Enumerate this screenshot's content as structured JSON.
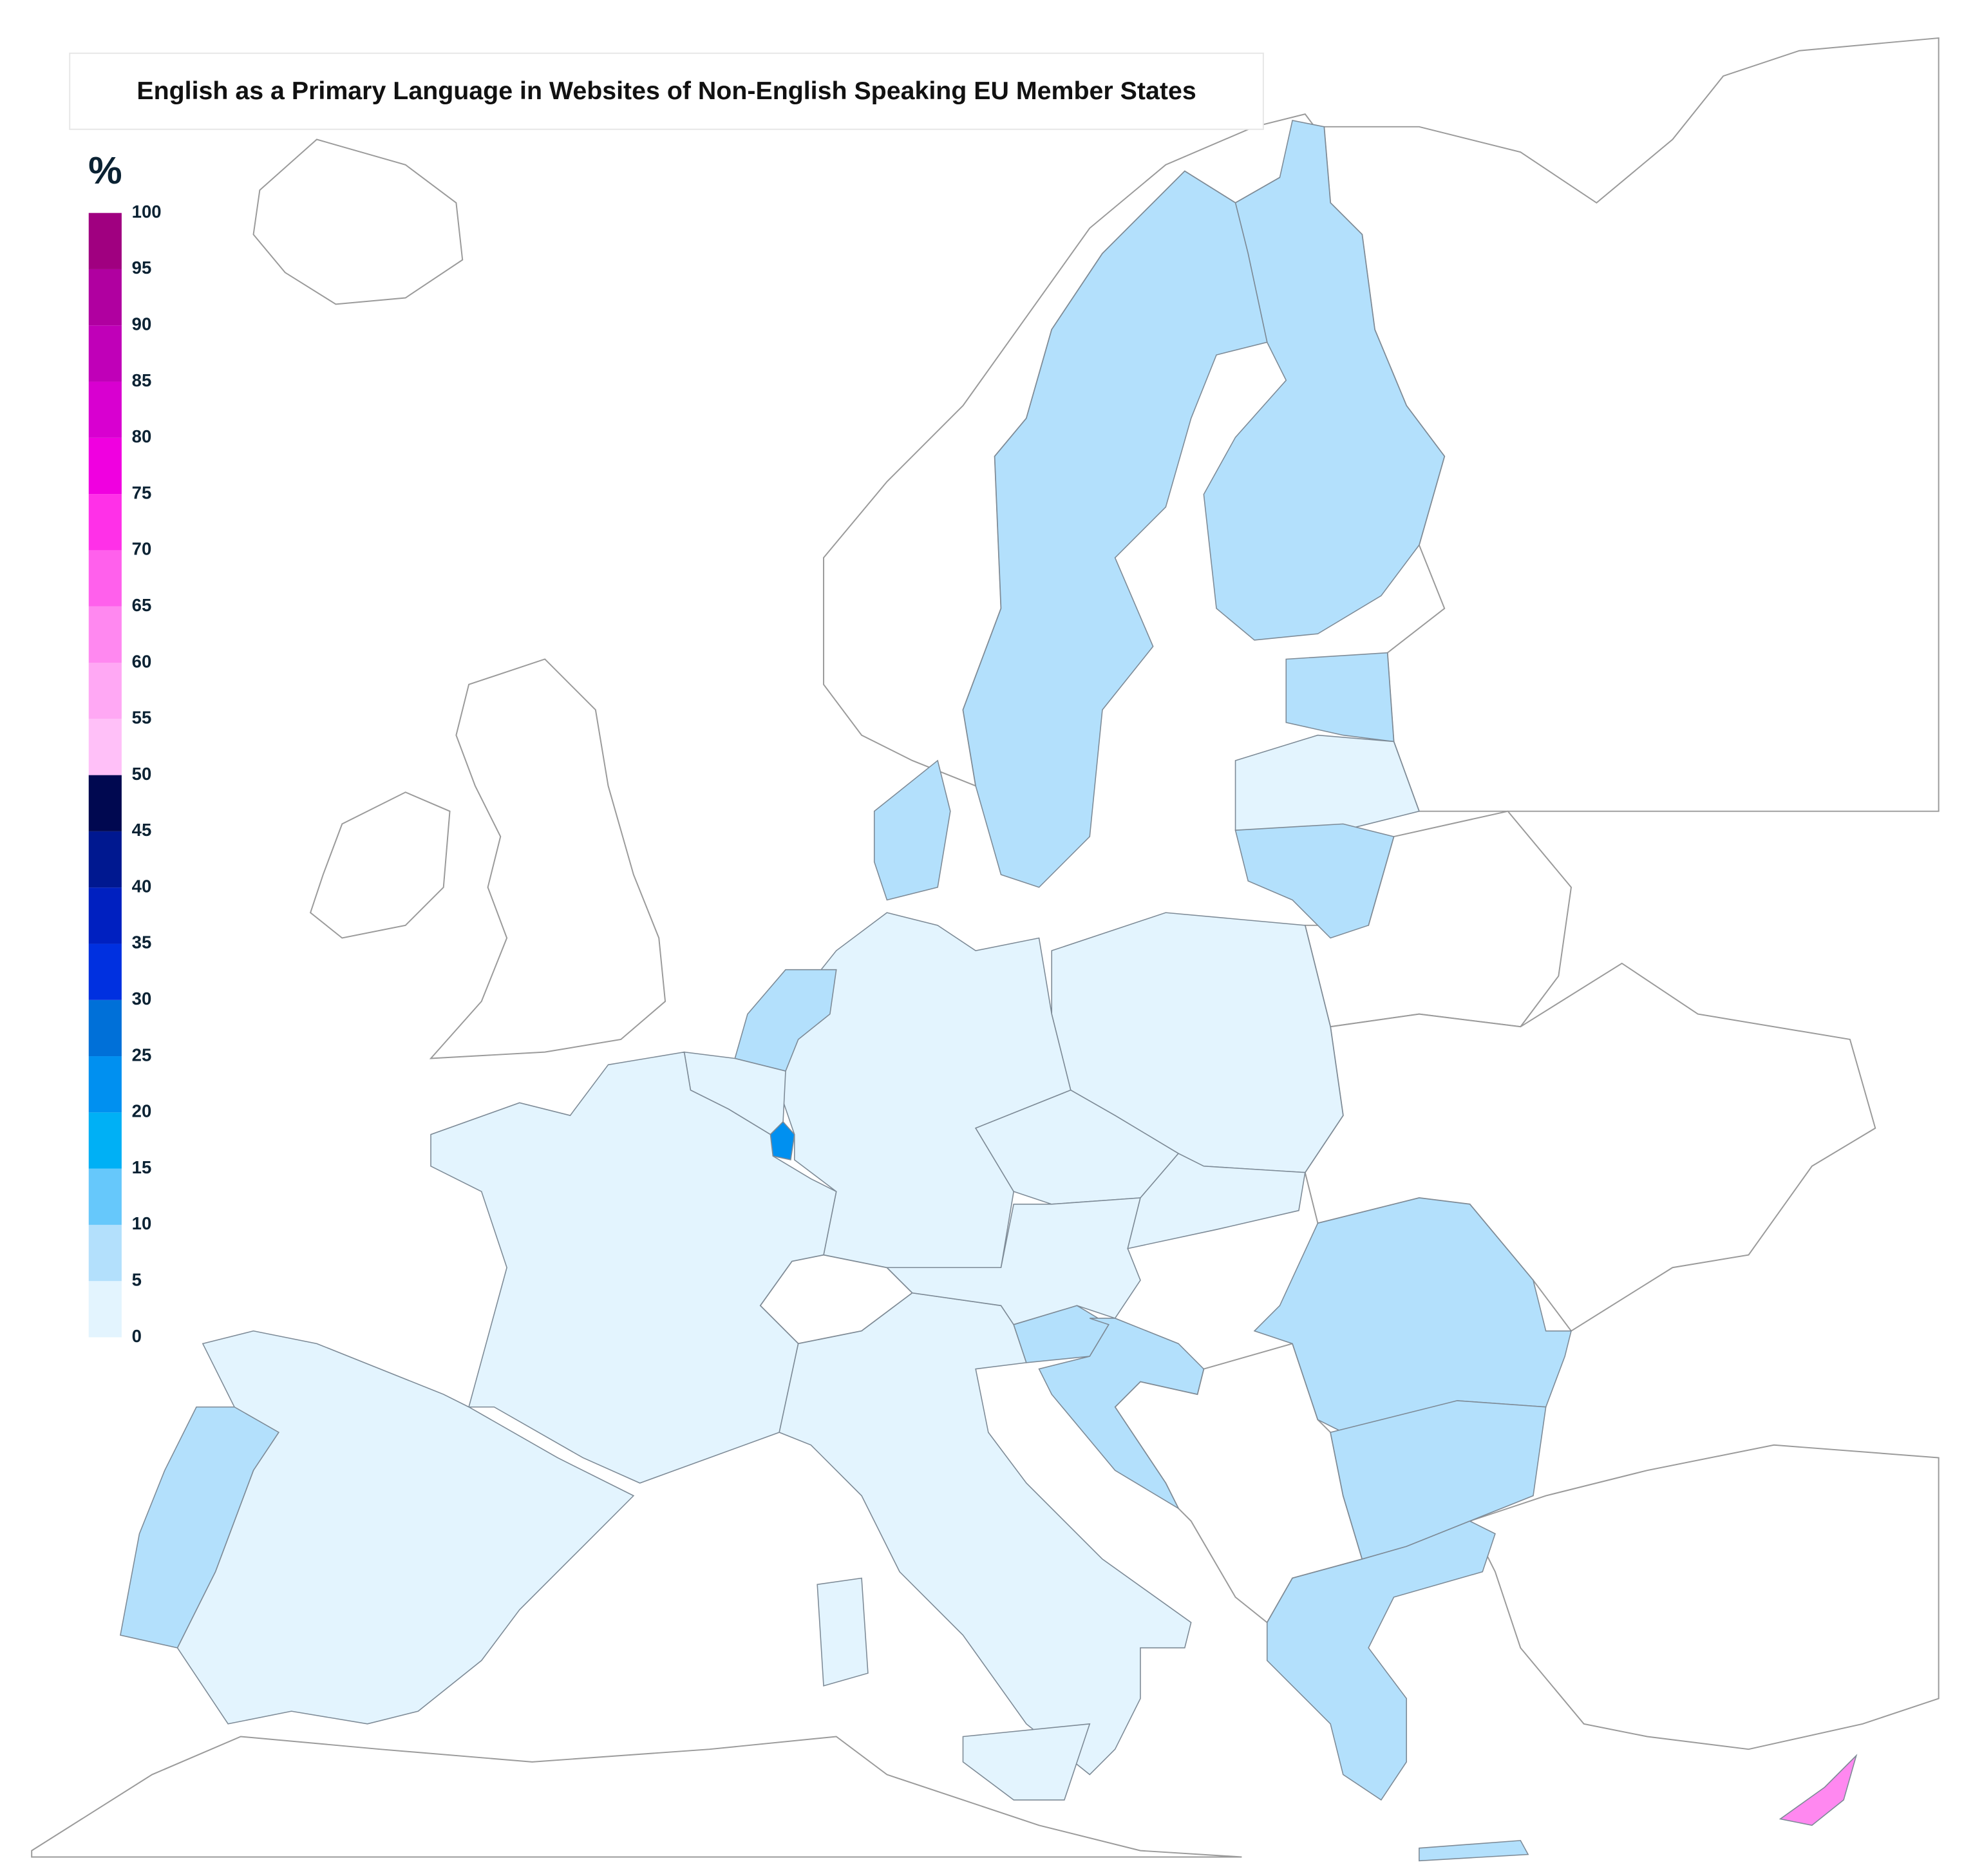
{
  "title": "English as a Primary Language in Websites of Non-English Speaking EU Member States",
  "legend": {
    "unit": "%",
    "ticks": [
      0,
      5,
      10,
      15,
      20,
      25,
      30,
      35,
      40,
      45,
      50,
      55,
      60,
      65,
      70,
      75,
      80,
      85,
      90,
      95,
      100
    ],
    "colors": [
      "#e3f4fe",
      "#b3e0fc",
      "#66c8fb",
      "#00b0f5",
      "#0090f0",
      "#0070d8",
      "#0030e0",
      "#0020c0",
      "#001890",
      "#000850",
      "#ffc0f8",
      "#ffa8f4",
      "#ff88f0",
      "#ff60ec",
      "#ff30e8",
      "#f000e0",
      "#d800d0",
      "#c000b8",
      "#b000a0",
      "#a00080"
    ]
  },
  "regions": {
    "values": [
      7,
      7,
      7,
      2,
      7,
      2,
      2,
      7,
      7,
      2,
      22,
      2,
      2,
      7,
      2,
      2,
      2,
      2,
      2,
      2,
      7,
      7,
      7,
      7,
      7,
      7,
      62
    ]
  }
}
